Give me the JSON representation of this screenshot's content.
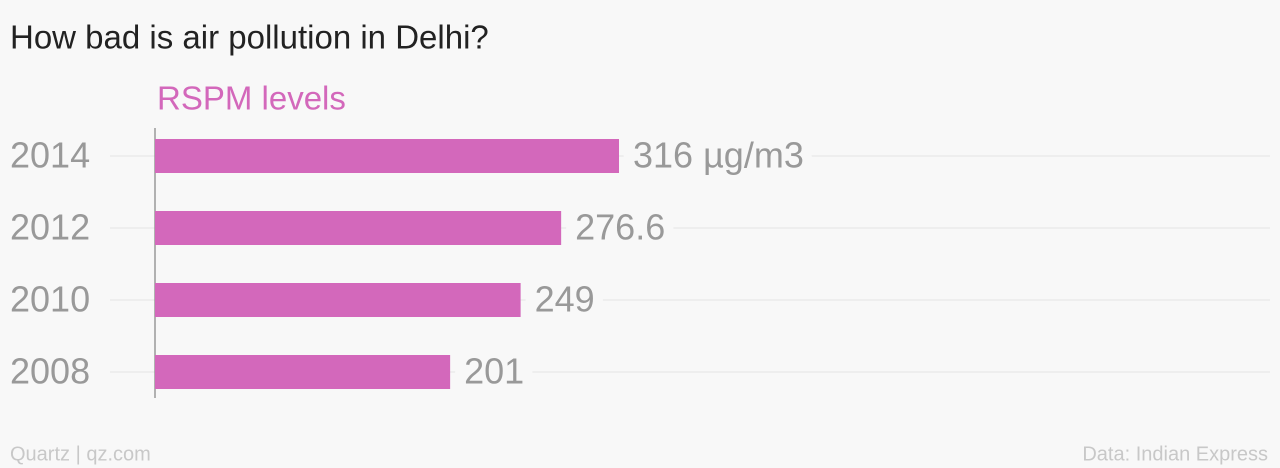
{
  "chart_data": {
    "type": "bar",
    "orientation": "horizontal",
    "title": "How bad is air pollution in Delhi?",
    "subtitle": "RSPM levels",
    "categories": [
      "2014",
      "2012",
      "2010",
      "2008"
    ],
    "values": [
      316,
      276.6,
      249,
      201
    ],
    "value_labels": [
      "316 µg/m3",
      "276.6",
      "249",
      "201"
    ],
    "color": "#d368bb",
    "grid": true,
    "footer_left": "Quartz | qz.com",
    "footer_right": "Data: Indian Express"
  }
}
